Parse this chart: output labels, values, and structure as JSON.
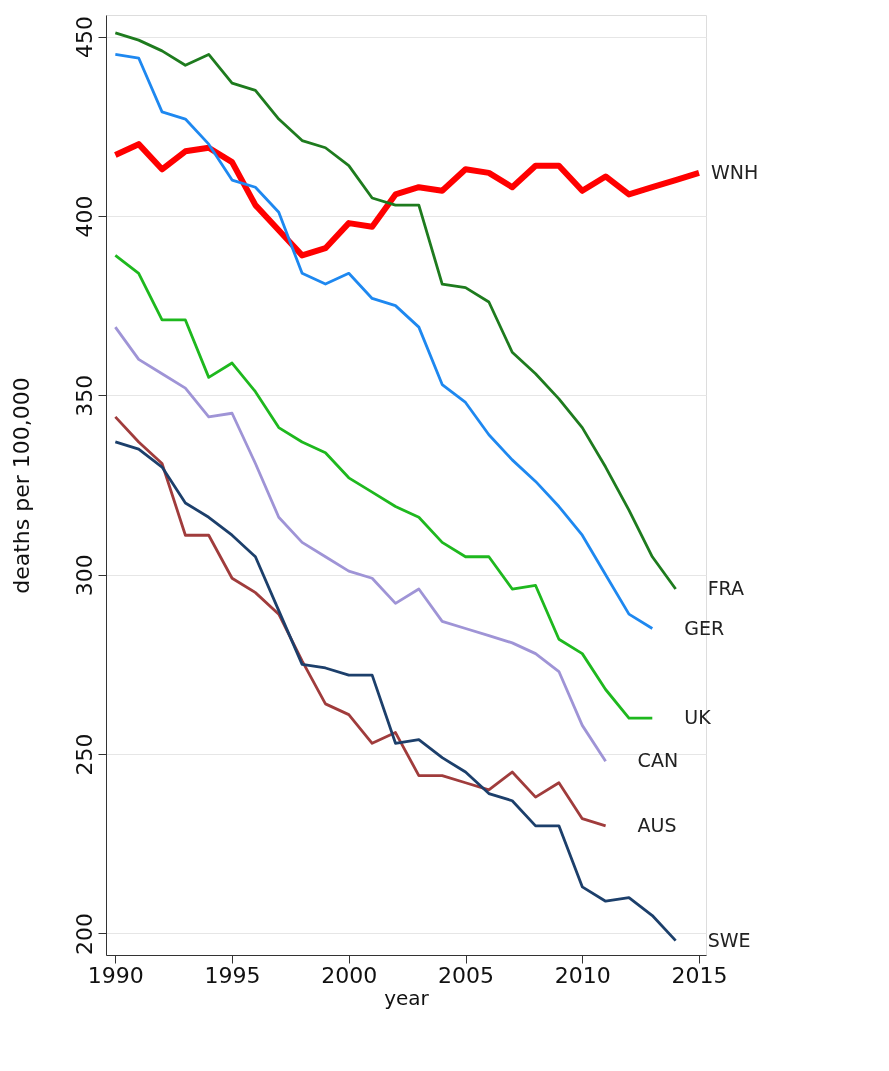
{
  "chart_data": {
    "type": "line",
    "xlabel": "year",
    "ylabel": "deaths per 100,000",
    "xlim": [
      1989.6,
      2015.3
    ],
    "ylim": [
      194,
      456
    ],
    "xticks": [
      1990,
      1995,
      2000,
      2005,
      2010,
      2015
    ],
    "yticks": [
      200,
      250,
      300,
      350,
      400,
      450
    ],
    "grid": "y",
    "marker": "none",
    "line_style": "solid",
    "series": [
      {
        "name": "WNH",
        "color": "#ff0000",
        "x": [
          1990,
          1991,
          1992,
          1993,
          1994,
          1995,
          1996,
          1997,
          1998,
          1999,
          2000,
          2001,
          2002,
          2003,
          2004,
          2005,
          2006,
          2007,
          2008,
          2009,
          2010,
          2011,
          2012,
          2013,
          2014,
          2015
        ],
        "values": [
          417,
          420,
          413,
          418,
          419,
          415,
          403,
          396,
          389,
          391,
          398,
          397,
          406,
          408,
          407,
          413,
          412,
          408,
          414,
          414,
          407,
          411,
          406,
          408,
          410,
          412
        ]
      },
      {
        "name": "FRA",
        "color": "#1e7b1e",
        "x": [
          1990,
          1991,
          1992,
          1993,
          1994,
          1995,
          1996,
          1997,
          1998,
          1999,
          2000,
          2001,
          2002,
          2003,
          2004,
          2005,
          2006,
          2007,
          2008,
          2009,
          2010,
          2011,
          2012,
          2013,
          2014
        ],
        "values": [
          451,
          449,
          446,
          442,
          445,
          437,
          435,
          427,
          421,
          419,
          414,
          405,
          403,
          403,
          381,
          380,
          376,
          362,
          356,
          349,
          341,
          330,
          318,
          305,
          296
        ]
      },
      {
        "name": "GER",
        "color": "#1e88f0",
        "x": [
          1990,
          1991,
          1992,
          1993,
          1994,
          1995,
          1996,
          1997,
          1998,
          1999,
          2000,
          2001,
          2002,
          2003,
          2004,
          2005,
          2006,
          2007,
          2008,
          2009,
          2010,
          2011,
          2012,
          2013
        ],
        "values": [
          445,
          444,
          429,
          427,
          420,
          410,
          408,
          401,
          384,
          381,
          384,
          377,
          375,
          369,
          353,
          348,
          339,
          332,
          326,
          319,
          311,
          300,
          289,
          285
        ]
      },
      {
        "name": "UK",
        "color": "#1eb81e",
        "x": [
          1990,
          1991,
          1992,
          1993,
          1994,
          1995,
          1996,
          1997,
          1998,
          1999,
          2000,
          2001,
          2002,
          2003,
          2004,
          2005,
          2006,
          2007,
          2008,
          2009,
          2010,
          2011,
          2012,
          2013
        ],
        "values": [
          389,
          384,
          371,
          371,
          355,
          359,
          351,
          341,
          337,
          334,
          327,
          323,
          319,
          316,
          309,
          305,
          305,
          296,
          297,
          282,
          278,
          268,
          260,
          260
        ]
      },
      {
        "name": "CAN",
        "color": "#9f94d6",
        "x": [
          1990,
          1991,
          1992,
          1993,
          1994,
          1995,
          1996,
          1997,
          1998,
          1999,
          2000,
          2001,
          2002,
          2003,
          2004,
          2005,
          2006,
          2007,
          2008,
          2009,
          2010,
          2011
        ],
        "values": [
          369,
          360,
          356,
          352,
          344,
          345,
          331,
          316,
          309,
          305,
          301,
          299,
          292,
          296,
          287,
          285,
          283,
          281,
          278,
          273,
          258,
          248
        ]
      },
      {
        "name": "AUS",
        "color": "#a03c3c",
        "x": [
          1990,
          1991,
          1992,
          1993,
          1994,
          1995,
          1996,
          1997,
          1998,
          1999,
          2000,
          2001,
          2002,
          2003,
          2004,
          2005,
          2006,
          2007,
          2008,
          2009,
          2010,
          2011
        ],
        "values": [
          344,
          337,
          331,
          311,
          311,
          299,
          295,
          289,
          276,
          264,
          261,
          253,
          256,
          244,
          244,
          242,
          240,
          245,
          238,
          242,
          232,
          230
        ]
      },
      {
        "name": "SWE",
        "color": "#1c3f6b",
        "x": [
          1990,
          1991,
          1992,
          1993,
          1994,
          1995,
          1996,
          1997,
          1998,
          1999,
          2000,
          2001,
          2002,
          2003,
          2004,
          2005,
          2006,
          2007,
          2008,
          2009,
          2010,
          2011,
          2012,
          2013,
          2014
        ],
        "values": [
          337,
          335,
          330,
          320,
          316,
          311,
          305,
          290,
          275,
          274,
          272,
          272,
          253,
          254,
          249,
          245,
          239,
          237,
          230,
          230,
          213,
          209,
          210,
          205,
          198
        ]
      }
    ]
  }
}
